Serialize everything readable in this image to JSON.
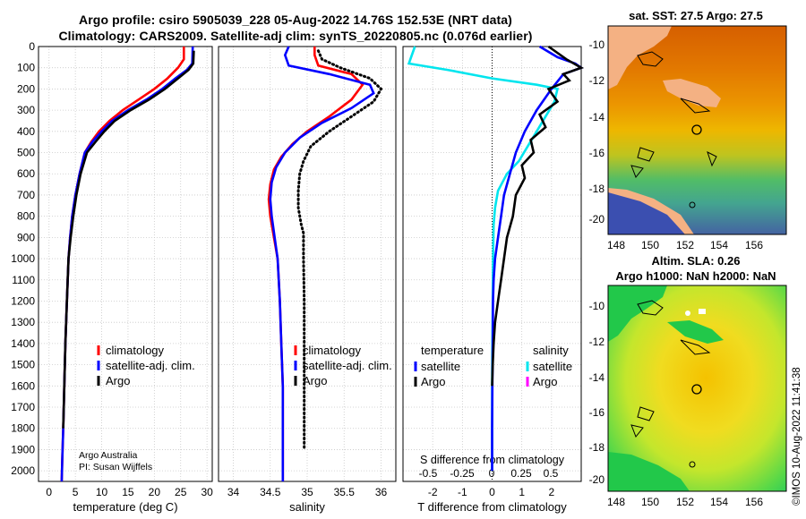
{
  "header": {
    "line1": "Argo profile: csiro 5905039_228 05-Aug-2022 14.76S 152.53E (NRT data)",
    "line2": "Climatology: CARS2009. Satellite-adj clim: synTS_20220805.nc (0.076d earlier)"
  },
  "map_top": {
    "title": "sat. SST: 27.5 Argo: 27.5"
  },
  "map_bottom": {
    "title1": "Altim. SLA: 0.26",
    "title2": "Argo h1000: NaN h2000: NaN"
  },
  "stamp": "©IMOS 10-Aug-2022 11:41:38",
  "credit": [
    "Argo Australia",
    "PI: Susan Wijffels"
  ],
  "map_axes": {
    "xticks": [
      "148",
      "150",
      "152",
      "154",
      "156"
    ],
    "yticks": [
      "-10",
      "-12",
      "-14",
      "-16",
      "-18",
      "-20"
    ]
  },
  "colors": {
    "climatology": "#ff0000",
    "satellite": "#0000ff",
    "argo": "#000000",
    "sat_T": "#00e5ee",
    "argo_S": "#ff00ff"
  },
  "chart_data": [
    {
      "type": "line",
      "xlabel": "temperature (deg C)",
      "ylabel": "",
      "xlim": [
        -2,
        31
      ],
      "ylim": [
        2050,
        0
      ],
      "xticks": [
        0,
        5,
        10,
        15,
        20,
        25,
        30
      ],
      "yticks": [
        0,
        100,
        200,
        300,
        400,
        500,
        600,
        700,
        800,
        900,
        1000,
        1100,
        1200,
        1300,
        1400,
        1500,
        1600,
        1700,
        1800,
        1900,
        2000
      ],
      "legend": [
        "climatology",
        "satellite-adj. clim.",
        "Argo"
      ],
      "series": [
        {
          "name": "climatology",
          "style": "solid",
          "color": "#ff0000",
          "x": [
            25.6,
            25.6,
            24.5,
            22.5,
            20,
            17,
            14,
            11.5,
            9.5,
            8,
            6.8,
            5.8,
            5,
            4.4,
            4,
            3.7,
            3.4,
            3.1,
            2.9,
            2.7,
            2.5,
            2.4
          ],
          "y": [
            0,
            60,
            100,
            150,
            200,
            250,
            300,
            350,
            400,
            450,
            500,
            600,
            700,
            800,
            900,
            1000,
            1200,
            1400,
            1600,
            1800,
            1950,
            2050
          ]
        },
        {
          "name": "satellite-adj. clim.",
          "style": "solid",
          "color": "#0000ff",
          "x": [
            27.3,
            27.2,
            26.2,
            24,
            21.5,
            18.5,
            15,
            12,
            10,
            8.2,
            6.8,
            5.8,
            5,
            4.4,
            4,
            3.7,
            3.4,
            3.1,
            2.9,
            2.7,
            2.5,
            2.4
          ],
          "y": [
            0,
            80,
            110,
            150,
            200,
            250,
            300,
            350,
            400,
            450,
            500,
            600,
            700,
            800,
            900,
            1000,
            1200,
            1400,
            1600,
            1800,
            1950,
            2050
          ]
        },
        {
          "name": "Argo",
          "style": "solid",
          "color": "#000000",
          "x": [
            27.5,
            27.4,
            26.5,
            24.5,
            22,
            19,
            15.5,
            12.5,
            10.5,
            8.8,
            7.2,
            6,
            5.2,
            4.6,
            4.1,
            3.7,
            3.4,
            3.1,
            2.9,
            2.7
          ],
          "y": [
            20,
            80,
            110,
            150,
            200,
            250,
            300,
            350,
            400,
            450,
            500,
            600,
            700,
            800,
            900,
            1000,
            1200,
            1400,
            1600,
            1800
          ]
        }
      ]
    },
    {
      "type": "line",
      "xlabel": "salinity",
      "ylabel": "",
      "xlim": [
        33.8,
        36.2
      ],
      "ylim": [
        2050,
        0
      ],
      "xticks": [
        34,
        34.5,
        35,
        35.5,
        36
      ],
      "xticklabels": [
        "34",
        "34.5",
        "35",
        "35.5",
        "36"
      ],
      "legend": [
        "climatology",
        "satellite-adj. clim.",
        "Argo"
      ],
      "series": [
        {
          "name": "climatology",
          "style": "solid",
          "color": "#ff0000",
          "x": [
            35.1,
            35.1,
            35.15,
            35.6,
            35.75,
            35.6,
            35.3,
            35,
            34.8,
            34.65,
            34.55,
            34.5,
            34.48,
            34.5,
            34.55,
            34.6,
            34.63,
            34.65,
            34.67,
            34.67,
            34.67,
            34.67
          ],
          "y": [
            0,
            40,
            90,
            130,
            180,
            250,
            330,
            400,
            460,
            520,
            580,
            650,
            720,
            800,
            900,
            1000,
            1200,
            1400,
            1600,
            1800,
            1950,
            2050
          ]
        },
        {
          "name": "satellite-adj. clim.",
          "style": "solid",
          "color": "#0000ff",
          "x": [
            34.75,
            34.7,
            34.75,
            35.3,
            35.85,
            35.9,
            35.6,
            35.2,
            34.9,
            34.7,
            34.58,
            34.52,
            34.5,
            34.52,
            34.56,
            34.6,
            34.63,
            34.65,
            34.67,
            34.67,
            34.67,
            34.67
          ],
          "y": [
            0,
            40,
            90,
            130,
            180,
            220,
            290,
            360,
            430,
            500,
            570,
            640,
            720,
            800,
            900,
            1000,
            1200,
            1400,
            1600,
            1800,
            1950,
            2050
          ]
        },
        {
          "name": "Argo",
          "style": "dotted",
          "color": "#000000",
          "x": [
            35.15,
            35.2,
            35.45,
            35.85,
            36.0,
            35.9,
            35.6,
            35.3,
            35.05,
            34.95,
            34.9,
            34.88,
            34.88,
            34.92,
            34.95,
            34.95,
            34.96,
            34.96,
            34.96,
            34.96
          ],
          "y": [
            20,
            60,
            100,
            150,
            200,
            260,
            330,
            400,
            470,
            540,
            600,
            680,
            760,
            840,
            880,
            1000,
            1200,
            1400,
            1600,
            1900
          ]
        }
      ]
    },
    {
      "type": "line",
      "xlabel": "T difference from climatology",
      "xlabel2": "S difference from climatology",
      "xlim": [
        -3,
        3
      ],
      "ylim": [
        2050,
        0
      ],
      "xticks": [
        -2,
        -1,
        0,
        1,
        2
      ],
      "xticks2": [
        "-0.5",
        "-0.25",
        "0",
        "0.25",
        "0.5"
      ],
      "legend_titles": [
        "temperature",
        "salinity"
      ],
      "legend_left": [
        "satellite",
        "Argo"
      ],
      "legend_right": [
        "satellite",
        "Argo"
      ],
      "series": [
        {
          "name": "satellite",
          "quantity": "salinity",
          "color": "#00e5ee",
          "x": [
            -2.6,
            -2.7,
            -2.8,
            -1.5,
            0,
            1.5,
            2.2,
            2.1,
            1.8,
            1.5,
            1.2,
            0.9,
            0.5,
            0.2,
            0.1,
            0.05,
            0.03,
            0.02,
            0.01,
            0.0,
            0.0,
            0.0
          ],
          "y": [
            0,
            40,
            80,
            110,
            150,
            180,
            200,
            260,
            330,
            400,
            470,
            540,
            600,
            680,
            760,
            840,
            1000,
            1200,
            1400,
            1600,
            1800,
            2000
          ]
        },
        {
          "name": "satellite",
          "quantity": "temperature",
          "color": "#0000ff",
          "x": [
            1.6,
            2.2,
            2.8,
            3,
            2.4,
            2.0,
            1.5,
            1.1,
            0.8,
            0.6,
            0.4,
            0.3,
            0.2,
            0.1,
            0.05,
            0.03,
            0.02,
            0.01,
            0.0,
            0.0
          ],
          "y": [
            0,
            50,
            80,
            100,
            130,
            200,
            300,
            400,
            500,
            600,
            700,
            800,
            900,
            1000,
            1100,
            1200,
            1400,
            1600,
            1800,
            2000
          ]
        },
        {
          "name": "Argo",
          "quantity": "temperature",
          "color": "#000000",
          "x": [
            1.9,
            2.5,
            3,
            2.4,
            2.6,
            1.9,
            2.2,
            1.6,
            1.8,
            1.3,
            1.4,
            1.0,
            1.1,
            0.8,
            0.7,
            0.5,
            0.4,
            0.3,
            0.2,
            0.1,
            0.05,
            0.02,
            0.0
          ],
          "y": [
            0,
            60,
            100,
            130,
            160,
            200,
            260,
            320,
            380,
            440,
            500,
            560,
            620,
            700,
            800,
            900,
            1000,
            1100,
            1200,
            1300,
            1400,
            1500,
            1600
          ]
        }
      ]
    }
  ]
}
